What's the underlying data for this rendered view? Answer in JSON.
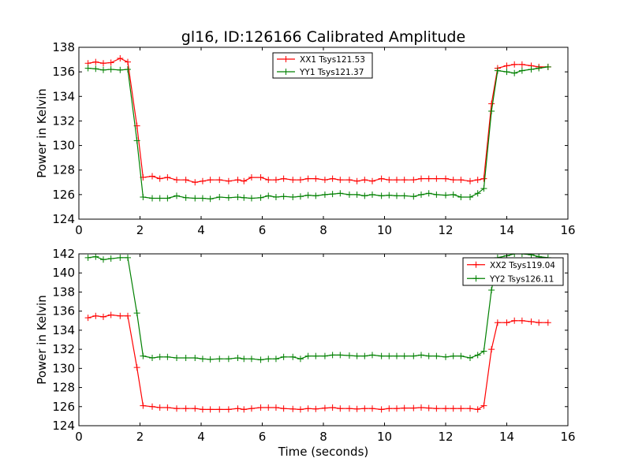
{
  "title": "gl16, ID:126166 Calibrated Amplitude",
  "chart_data": [
    {
      "type": "line",
      "xlabel": "",
      "ylabel": "Power in Kelvin",
      "xlim": [
        0,
        16
      ],
      "ylim": [
        124,
        138
      ],
      "xticks": [
        "0",
        "2",
        "4",
        "6",
        "8",
        "10",
        "12",
        "14",
        "16"
      ],
      "yticks": [
        "124",
        "126",
        "128",
        "130",
        "132",
        "134",
        "136",
        "138"
      ],
      "grid": false,
      "legend_position": "top-center",
      "x": [
        0.3,
        0.55,
        0.8,
        1.05,
        1.35,
        1.6,
        1.9,
        2.1,
        2.4,
        2.65,
        2.9,
        3.2,
        3.5,
        3.8,
        4.05,
        4.3,
        4.6,
        4.9,
        5.2,
        5.4,
        5.65,
        5.95,
        6.2,
        6.45,
        6.7,
        7.0,
        7.25,
        7.5,
        7.75,
        8.05,
        8.3,
        8.55,
        8.85,
        9.1,
        9.35,
        9.6,
        9.9,
        10.15,
        10.4,
        10.65,
        10.95,
        11.2,
        11.45,
        11.7,
        12.0,
        12.25,
        12.5,
        12.8,
        13.05,
        13.25,
        13.5,
        13.7,
        14.0,
        14.25,
        14.5,
        14.8,
        15.05,
        15.35
      ],
      "series": [
        {
          "name": "XX1 Tsys121.53",
          "color": "#ff0000",
          "values": [
            136.7,
            136.8,
            136.7,
            136.75,
            137.1,
            136.8,
            131.6,
            127.4,
            127.5,
            127.3,
            127.4,
            127.2,
            127.2,
            127.0,
            127.1,
            127.2,
            127.2,
            127.1,
            127.2,
            127.1,
            127.4,
            127.4,
            127.2,
            127.2,
            127.3,
            127.2,
            127.2,
            127.3,
            127.3,
            127.2,
            127.3,
            127.2,
            127.2,
            127.1,
            127.2,
            127.1,
            127.3,
            127.2,
            127.2,
            127.2,
            127.2,
            127.3,
            127.3,
            127.3,
            127.3,
            127.2,
            127.2,
            127.1,
            127.2,
            127.3,
            133.4,
            136.3,
            136.5,
            136.6,
            136.6,
            136.5,
            136.4,
            136.4
          ]
        },
        {
          "name": "YY1 Tsys121.37",
          "color": "#008000",
          "values": [
            136.3,
            136.25,
            136.15,
            136.2,
            136.15,
            136.2,
            130.4,
            125.8,
            125.7,
            125.7,
            125.7,
            125.9,
            125.75,
            125.7,
            125.7,
            125.65,
            125.8,
            125.75,
            125.8,
            125.75,
            125.7,
            125.75,
            125.9,
            125.8,
            125.85,
            125.8,
            125.85,
            125.95,
            125.9,
            126.0,
            126.05,
            126.1,
            126.0,
            126.0,
            125.9,
            126.0,
            125.9,
            125.95,
            125.9,
            125.9,
            125.85,
            126.0,
            126.1,
            126.0,
            125.95,
            126.0,
            125.8,
            125.8,
            126.1,
            126.5,
            132.8,
            136.1,
            136.0,
            135.9,
            136.1,
            136.2,
            136.3,
            136.4
          ]
        }
      ]
    },
    {
      "type": "line",
      "xlabel": "Time (seconds)",
      "ylabel": "Power in Kelvin",
      "xlim": [
        0,
        16
      ],
      "ylim": [
        124,
        142
      ],
      "xticks": [
        "0",
        "2",
        "4",
        "6",
        "8",
        "10",
        "12",
        "14",
        "16"
      ],
      "yticks": [
        "124",
        "126",
        "128",
        "130",
        "132",
        "134",
        "136",
        "138",
        "140",
        "142"
      ],
      "grid": false,
      "legend_position": "top-right",
      "x": [
        0.3,
        0.55,
        0.8,
        1.05,
        1.35,
        1.6,
        1.9,
        2.1,
        2.4,
        2.65,
        2.9,
        3.2,
        3.5,
        3.8,
        4.05,
        4.3,
        4.6,
        4.9,
        5.2,
        5.4,
        5.65,
        5.95,
        6.2,
        6.45,
        6.7,
        7.0,
        7.25,
        7.5,
        7.75,
        8.05,
        8.3,
        8.55,
        8.85,
        9.1,
        9.35,
        9.6,
        9.9,
        10.15,
        10.4,
        10.65,
        10.95,
        11.2,
        11.45,
        11.7,
        12.0,
        12.25,
        12.5,
        12.8,
        13.05,
        13.25,
        13.5,
        13.7,
        14.0,
        14.25,
        14.5,
        14.8,
        15.05,
        15.35
      ],
      "series": [
        {
          "name": "XX2 Tsys119.04",
          "color": "#ff0000",
          "values": [
            135.3,
            135.5,
            135.4,
            135.6,
            135.5,
            135.5,
            130.1,
            126.1,
            126.0,
            125.9,
            125.9,
            125.8,
            125.8,
            125.8,
            125.7,
            125.7,
            125.7,
            125.7,
            125.8,
            125.7,
            125.8,
            125.9,
            125.9,
            125.9,
            125.8,
            125.75,
            125.7,
            125.8,
            125.75,
            125.85,
            125.9,
            125.8,
            125.8,
            125.75,
            125.8,
            125.8,
            125.7,
            125.8,
            125.8,
            125.85,
            125.85,
            125.9,
            125.85,
            125.8,
            125.8,
            125.8,
            125.8,
            125.8,
            125.7,
            126.1,
            132.0,
            134.8,
            134.8,
            135.0,
            135.0,
            134.9,
            134.8,
            134.8
          ]
        },
        {
          "name": "YY2 Tsys126.11",
          "color": "#008000",
          "values": [
            141.6,
            141.7,
            141.4,
            141.5,
            141.6,
            141.6,
            135.8,
            131.3,
            131.1,
            131.2,
            131.2,
            131.1,
            131.1,
            131.1,
            131.0,
            130.95,
            131.0,
            131.0,
            131.1,
            131.0,
            131.0,
            130.9,
            131.0,
            131.0,
            131.2,
            131.2,
            131.0,
            131.3,
            131.3,
            131.3,
            131.4,
            131.4,
            131.35,
            131.3,
            131.3,
            131.4,
            131.3,
            131.3,
            131.3,
            131.3,
            131.3,
            131.4,
            131.3,
            131.3,
            131.2,
            131.3,
            131.3,
            131.1,
            131.4,
            131.8,
            138.2,
            141.6,
            141.8,
            142.0,
            142.0,
            141.9,
            141.7,
            141.6
          ]
        }
      ]
    }
  ]
}
